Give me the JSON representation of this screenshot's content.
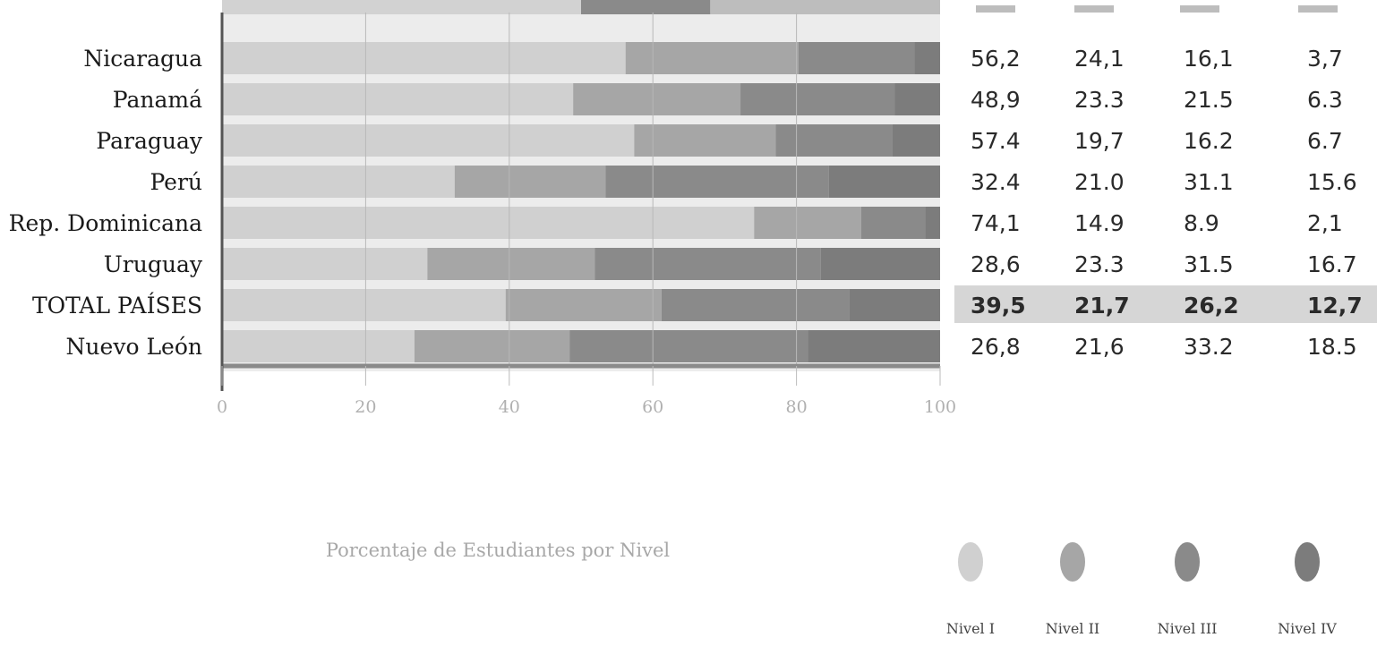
{
  "chart_data": {
    "type": "bar",
    "stacked": true,
    "orientation": "horizontal",
    "categories": [
      "Nicaragua",
      "Panamá",
      "Paraguay",
      "Perú",
      "Rep. Dominicana",
      "Uruguay",
      "TOTAL PAÍSES",
      "Nuevo León"
    ],
    "series": [
      {
        "name": "Nivel I",
        "values": [
          56.2,
          48.9,
          57.4,
          32.4,
          74.1,
          28.6,
          39.5,
          26.8
        ]
      },
      {
        "name": "Nivel II",
        "values": [
          24.1,
          23.3,
          19.7,
          21.0,
          14.9,
          23.3,
          21.7,
          21.6
        ]
      },
      {
        "name": "Nivel III",
        "values": [
          16.1,
          21.5,
          16.2,
          31.1,
          8.9,
          31.5,
          26.2,
          33.2
        ]
      },
      {
        "name": "Nivel IV",
        "values": [
          3.7,
          6.3,
          6.7,
          15.6,
          2.1,
          16.7,
          12.7,
          18.5
        ]
      }
    ],
    "value_labels": [
      [
        "56,2",
        "24,1",
        "16,1",
        "3,7"
      ],
      [
        "48,9",
        "23.3",
        "21.5",
        "6.3"
      ],
      [
        "57.4",
        "19,7",
        "16.2",
        "6.7"
      ],
      [
        "32.4",
        "21.0",
        "31.1",
        "15.6"
      ],
      [
        "74,1",
        "14.9",
        "8.9",
        "2,1"
      ],
      [
        "28,6",
        "23.3",
        "31.5",
        "16.7"
      ],
      [
        "39,5",
        "21,7",
        "26,2",
        "12,7"
      ],
      [
        "26,8",
        "21,6",
        "33.2",
        "18.5"
      ]
    ],
    "xlim": [
      0,
      100
    ],
    "xticks": [
      "0",
      "20",
      "40",
      "60",
      "80",
      "100"
    ],
    "xlabel": "Porcentaje de Estudiantes por Nivel",
    "highlight_row": "TOTAL PAÍSES",
    "legend_position": "bottom-right",
    "grid": true,
    "colors": {
      "Nivel I": "#d0d0d0",
      "Nivel II": "#a6a6a6",
      "Nivel III": "#8a8a8a",
      "Nivel IV": "#7c7c7c",
      "highlight": "#d6d6d6"
    }
  }
}
